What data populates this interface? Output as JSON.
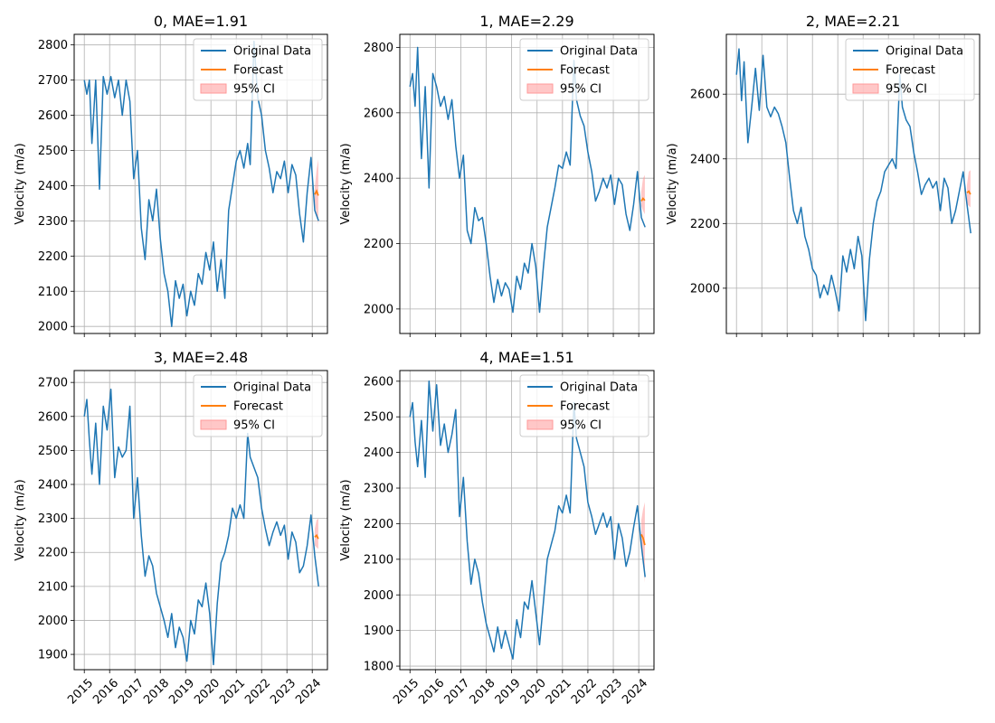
{
  "colors": {
    "original": "#1f77b4",
    "forecast": "#ff7f0e",
    "ci": "#ff9999",
    "grid": "#b0b0b0"
  },
  "legend": {
    "original": "Original Data",
    "forecast": "Forecast",
    "ci": "95% CI",
    "placement": "upper right"
  },
  "chart_data": [
    {
      "type": "line",
      "title": "0, MAE=1.91",
      "xlabel": "",
      "ylabel": "Velocity (m/a)",
      "grid": true,
      "xlim": [
        2014.6,
        2024.6
      ],
      "ylim": [
        1980,
        2830
      ],
      "yticks": [
        2000,
        2100,
        2200,
        2300,
        2400,
        2500,
        2600,
        2700,
        2800
      ],
      "xticks": [
        2015,
        2016,
        2017,
        2018,
        2019,
        2020,
        2021,
        2022,
        2023,
        2024
      ],
      "xtick_labels_shown": false,
      "series": [
        {
          "name": "Original Data",
          "x": [
            2015.0,
            2015.1,
            2015.2,
            2015.3,
            2015.45,
            2015.6,
            2015.75,
            2015.9,
            2016.05,
            2016.2,
            2016.35,
            2016.5,
            2016.65,
            2016.8,
            2016.95,
            2017.1,
            2017.25,
            2017.4,
            2017.55,
            2017.7,
            2017.85,
            2018.0,
            2018.15,
            2018.3,
            2018.45,
            2018.6,
            2018.75,
            2018.9,
            2019.05,
            2019.2,
            2019.35,
            2019.5,
            2019.65,
            2019.8,
            2019.95,
            2020.1,
            2020.25,
            2020.4,
            2020.55,
            2020.7,
            2020.85,
            2021.0,
            2021.15,
            2021.3,
            2021.45,
            2021.55,
            2021.7,
            2021.85,
            2022.0,
            2022.15,
            2022.3,
            2022.45,
            2022.6,
            2022.75,
            2022.9,
            2023.05,
            2023.2,
            2023.35,
            2023.5,
            2023.65,
            2023.8,
            2023.95,
            2024.1,
            2024.25
          ],
          "y": [
            2700,
            2660,
            2700,
            2520,
            2700,
            2390,
            2710,
            2660,
            2710,
            2650,
            2700,
            2600,
            2700,
            2640,
            2420,
            2500,
            2280,
            2190,
            2360,
            2300,
            2390,
            2250,
            2150,
            2100,
            2000,
            2130,
            2080,
            2120,
            2030,
            2100,
            2060,
            2150,
            2120,
            2210,
            2160,
            2240,
            2100,
            2190,
            2080,
            2330,
            2400,
            2470,
            2500,
            2450,
            2520,
            2460,
            2810,
            2650,
            2600,
            2500,
            2450,
            2380,
            2440,
            2420,
            2470,
            2380,
            2460,
            2430,
            2320,
            2240,
            2380,
            2480,
            2330,
            2300
          ]
        },
        {
          "name": "Forecast",
          "x": [
            2024.1,
            2024.17,
            2024.24
          ],
          "y": [
            2375,
            2385,
            2372
          ],
          "ci_lower": [
            2355,
            2320,
            2290
          ],
          "ci_upper": [
            2395,
            2445,
            2475
          ]
        }
      ]
    },
    {
      "type": "line",
      "title": "1, MAE=2.29",
      "xlabel": "",
      "ylabel": "Velocity (m/a)",
      "grid": true,
      "xlim": [
        2014.6,
        2024.6
      ],
      "ylim": [
        1925,
        2840
      ],
      "yticks": [
        2000,
        2200,
        2400,
        2600,
        2800
      ],
      "xticks": [
        2015,
        2016,
        2017,
        2018,
        2019,
        2020,
        2021,
        2022,
        2023,
        2024
      ],
      "xtick_labels_shown": false,
      "series": [
        {
          "name": "Original Data",
          "x": [
            2015.0,
            2015.1,
            2015.2,
            2015.3,
            2015.45,
            2015.6,
            2015.75,
            2015.9,
            2016.05,
            2016.2,
            2016.35,
            2016.5,
            2016.65,
            2016.8,
            2016.95,
            2017.1,
            2017.25,
            2017.4,
            2017.55,
            2017.7,
            2017.85,
            2018.0,
            2018.15,
            2018.3,
            2018.45,
            2018.6,
            2018.75,
            2018.9,
            2019.05,
            2019.2,
            2019.35,
            2019.5,
            2019.65,
            2019.8,
            2019.95,
            2020.1,
            2020.25,
            2020.4,
            2020.55,
            2020.7,
            2020.85,
            2021.0,
            2021.15,
            2021.3,
            2021.45,
            2021.55,
            2021.7,
            2021.85,
            2022.0,
            2022.15,
            2022.3,
            2022.45,
            2022.6,
            2022.75,
            2022.9,
            2023.05,
            2023.2,
            2023.35,
            2023.5,
            2023.65,
            2023.8,
            2023.95,
            2024.1,
            2024.25
          ],
          "y": [
            2680,
            2720,
            2620,
            2800,
            2460,
            2680,
            2370,
            2720,
            2680,
            2620,
            2650,
            2580,
            2640,
            2500,
            2400,
            2470,
            2240,
            2200,
            2310,
            2270,
            2280,
            2200,
            2100,
            2020,
            2090,
            2040,
            2080,
            2060,
            1990,
            2100,
            2060,
            2140,
            2110,
            2200,
            2130,
            1990,
            2130,
            2250,
            2310,
            2370,
            2440,
            2430,
            2480,
            2440,
            2760,
            2640,
            2590,
            2560,
            2480,
            2420,
            2330,
            2360,
            2400,
            2370,
            2410,
            2320,
            2400,
            2380,
            2290,
            2240,
            2320,
            2420,
            2280,
            2250
          ]
        },
        {
          "name": "Forecast",
          "x": [
            2024.1,
            2024.17,
            2024.24
          ],
          "y": [
            2330,
            2338,
            2332
          ],
          "ci_lower": [
            2315,
            2300,
            2290
          ],
          "ci_upper": [
            2360,
            2400,
            2410
          ]
        }
      ]
    },
    {
      "type": "line",
      "title": "2, MAE=2.21",
      "xlabel": "",
      "ylabel": "Velocity (m/a)",
      "grid": true,
      "xlim": [
        2014.6,
        2024.6
      ],
      "ylim": [
        1860,
        2785
      ],
      "yticks": [
        2000,
        2200,
        2400,
        2600
      ],
      "xticks": [
        2015,
        2016,
        2017,
        2018,
        2019,
        2020,
        2021,
        2022,
        2023,
        2024
      ],
      "xtick_labels_shown": false,
      "series": [
        {
          "name": "Original Data",
          "x": [
            2015.0,
            2015.1,
            2015.2,
            2015.3,
            2015.45,
            2015.6,
            2015.75,
            2015.9,
            2016.05,
            2016.2,
            2016.35,
            2016.5,
            2016.65,
            2016.8,
            2016.95,
            2017.1,
            2017.25,
            2017.4,
            2017.55,
            2017.7,
            2017.85,
            2018.0,
            2018.15,
            2018.3,
            2018.45,
            2018.6,
            2018.75,
            2018.9,
            2019.05,
            2019.2,
            2019.35,
            2019.5,
            2019.65,
            2019.8,
            2019.95,
            2020.1,
            2020.25,
            2020.4,
            2020.55,
            2020.7,
            2020.85,
            2021.0,
            2021.15,
            2021.3,
            2021.45,
            2021.55,
            2021.7,
            2021.85,
            2022.0,
            2022.15,
            2022.3,
            2022.45,
            2022.6,
            2022.75,
            2022.9,
            2023.05,
            2023.2,
            2023.35,
            2023.5,
            2023.65,
            2023.8,
            2023.95,
            2024.1,
            2024.25
          ],
          "y": [
            2660,
            2740,
            2580,
            2700,
            2450,
            2560,
            2680,
            2550,
            2720,
            2560,
            2530,
            2560,
            2540,
            2500,
            2450,
            2340,
            2240,
            2200,
            2250,
            2160,
            2120,
            2060,
            2040,
            1970,
            2010,
            1980,
            2040,
            1990,
            1930,
            2100,
            2050,
            2120,
            2060,
            2160,
            2100,
            1900,
            2090,
            2200,
            2270,
            2300,
            2360,
            2380,
            2400,
            2370,
            2660,
            2560,
            2520,
            2500,
            2420,
            2360,
            2290,
            2320,
            2340,
            2310,
            2330,
            2240,
            2340,
            2310,
            2200,
            2240,
            2300,
            2360,
            2260,
            2170
          ]
        },
        {
          "name": "Forecast",
          "x": [
            2024.1,
            2024.17,
            2024.24
          ],
          "y": [
            2295,
            2300,
            2290
          ],
          "ci_lower": [
            2260,
            2255,
            2250
          ],
          "ci_upper": [
            2320,
            2360,
            2365
          ]
        }
      ]
    },
    {
      "type": "line",
      "title": "3, MAE=2.48",
      "xlabel": "",
      "ylabel": "Velocity (m/a)",
      "grid": true,
      "xlim": [
        2014.6,
        2024.6
      ],
      "ylim": [
        1855,
        2735
      ],
      "yticks": [
        1900,
        2000,
        2100,
        2200,
        2300,
        2400,
        2500,
        2600,
        2700
      ],
      "xticks": [
        2015,
        2016,
        2017,
        2018,
        2019,
        2020,
        2021,
        2022,
        2023,
        2024
      ],
      "xtick_labels_shown": true,
      "series": [
        {
          "name": "Original Data",
          "x": [
            2015.0,
            2015.1,
            2015.2,
            2015.3,
            2015.45,
            2015.6,
            2015.75,
            2015.9,
            2016.05,
            2016.2,
            2016.35,
            2016.5,
            2016.65,
            2016.8,
            2016.95,
            2017.1,
            2017.25,
            2017.4,
            2017.55,
            2017.7,
            2017.85,
            2018.0,
            2018.15,
            2018.3,
            2018.45,
            2018.6,
            2018.75,
            2018.9,
            2019.05,
            2019.2,
            2019.35,
            2019.5,
            2019.65,
            2019.8,
            2019.95,
            2020.1,
            2020.25,
            2020.4,
            2020.55,
            2020.7,
            2020.85,
            2021.0,
            2021.15,
            2021.3,
            2021.45,
            2021.55,
            2021.7,
            2021.85,
            2022.0,
            2022.15,
            2022.3,
            2022.45,
            2022.6,
            2022.75,
            2022.9,
            2023.05,
            2023.2,
            2023.35,
            2023.5,
            2023.65,
            2023.8,
            2023.95,
            2024.1,
            2024.25
          ],
          "y": [
            2600,
            2650,
            2530,
            2430,
            2580,
            2400,
            2630,
            2560,
            2680,
            2420,
            2510,
            2480,
            2500,
            2630,
            2300,
            2420,
            2250,
            2130,
            2190,
            2160,
            2080,
            2040,
            2000,
            1950,
            2020,
            1920,
            1980,
            1950,
            1880,
            2000,
            1960,
            2060,
            2040,
            2110,
            2020,
            1870,
            2050,
            2170,
            2200,
            2250,
            2330,
            2300,
            2340,
            2300,
            2550,
            2480,
            2450,
            2420,
            2330,
            2270,
            2220,
            2260,
            2290,
            2250,
            2280,
            2180,
            2260,
            2230,
            2140,
            2160,
            2220,
            2310,
            2190,
            2100
          ]
        },
        {
          "name": "Forecast",
          "x": [
            2024.1,
            2024.17,
            2024.24
          ],
          "y": [
            2245,
            2250,
            2240
          ],
          "ci_lower": [
            2220,
            2215,
            2210
          ],
          "ci_upper": [
            2270,
            2295,
            2300
          ]
        }
      ]
    },
    {
      "type": "line",
      "title": "4, MAE=1.51",
      "xlabel": "",
      "ylabel": "Velocity (m/a)",
      "grid": true,
      "xlim": [
        2014.6,
        2024.6
      ],
      "ylim": [
        1790,
        2630
      ],
      "yticks": [
        1800,
        1900,
        2000,
        2100,
        2200,
        2300,
        2400,
        2500,
        2600
      ],
      "xticks": [
        2015,
        2016,
        2017,
        2018,
        2019,
        2020,
        2021,
        2022,
        2023,
        2024
      ],
      "xtick_labels_shown": true,
      "series": [
        {
          "name": "Original Data",
          "x": [
            2015.0,
            2015.1,
            2015.2,
            2015.3,
            2015.45,
            2015.6,
            2015.75,
            2015.9,
            2016.05,
            2016.2,
            2016.35,
            2016.5,
            2016.65,
            2016.8,
            2016.95,
            2017.1,
            2017.25,
            2017.4,
            2017.55,
            2017.7,
            2017.85,
            2018.0,
            2018.15,
            2018.3,
            2018.45,
            2018.6,
            2018.75,
            2018.9,
            2019.05,
            2019.2,
            2019.35,
            2019.5,
            2019.65,
            2019.8,
            2019.95,
            2020.1,
            2020.25,
            2020.4,
            2020.55,
            2020.7,
            2020.85,
            2021.0,
            2021.15,
            2021.3,
            2021.45,
            2021.55,
            2021.7,
            2021.85,
            2022.0,
            2022.15,
            2022.3,
            2022.45,
            2022.6,
            2022.75,
            2022.9,
            2023.05,
            2023.2,
            2023.35,
            2023.5,
            2023.65,
            2023.8,
            2023.95,
            2024.1,
            2024.25
          ],
          "y": [
            2500,
            2540,
            2430,
            2360,
            2490,
            2330,
            2600,
            2460,
            2590,
            2420,
            2480,
            2400,
            2450,
            2520,
            2220,
            2330,
            2150,
            2030,
            2100,
            2060,
            1980,
            1920,
            1880,
            1840,
            1910,
            1850,
            1900,
            1860,
            1820,
            1930,
            1880,
            1980,
            1960,
            2040,
            1950,
            1860,
            1980,
            2100,
            2140,
            2180,
            2250,
            2230,
            2280,
            2230,
            2540,
            2440,
            2400,
            2360,
            2260,
            2220,
            2170,
            2200,
            2230,
            2190,
            2220,
            2100,
            2200,
            2160,
            2080,
            2120,
            2190,
            2250,
            2140,
            2050
          ]
        },
        {
          "name": "Forecast",
          "x": [
            2024.1,
            2024.17,
            2024.24
          ],
          "y": [
            2170,
            2160,
            2140
          ],
          "ci_lower": [
            2130,
            2100,
            2035
          ],
          "ci_upper": [
            2210,
            2240,
            2260
          ]
        }
      ]
    }
  ]
}
